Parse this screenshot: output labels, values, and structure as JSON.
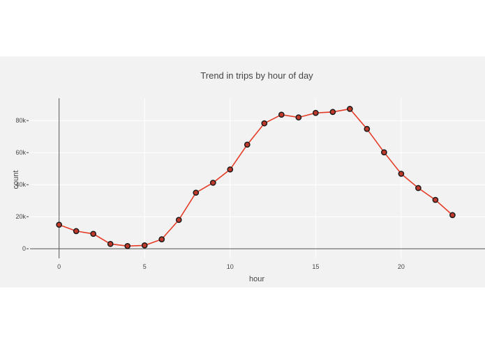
{
  "colors": {
    "panel_background": "#f2f2f2",
    "grid": "#ffffff",
    "line": "#e53b26",
    "marker_fill": "#c0392b",
    "marker_edge": "#1a1a1a",
    "text": "#444444"
  },
  "chart_data": {
    "type": "line",
    "title": "Trend in trips  by hour of day",
    "xlabel": "hour",
    "ylabel": "count",
    "xlim": [
      -1.7,
      24.9
    ],
    "ylim": [
      -6000,
      94000
    ],
    "x_ticks": [
      0,
      5,
      10,
      15,
      20
    ],
    "x_tick_labels": [
      "0",
      "5",
      "10",
      "15",
      "20"
    ],
    "y_ticks": [
      0,
      20000,
      40000,
      60000,
      80000
    ],
    "y_tick_labels": [
      "0",
      "20k",
      "40k",
      "60k",
      "80k"
    ],
    "grid": true,
    "legend": "none",
    "series": [
      {
        "x": [
          0,
          1,
          2,
          3,
          4,
          5,
          6,
          7,
          8,
          9,
          10,
          11,
          12,
          13,
          14,
          15,
          16,
          17,
          18,
          19,
          20,
          21,
          22,
          23
        ],
        "values": [
          15000,
          11000,
          9300,
          3000,
          1700,
          2100,
          5900,
          18000,
          35000,
          41200,
          49500,
          65000,
          78300,
          83700,
          82000,
          84800,
          85400,
          87300,
          74800,
          60200,
          46800,
          37900,
          30500,
          21000
        ]
      }
    ]
  }
}
